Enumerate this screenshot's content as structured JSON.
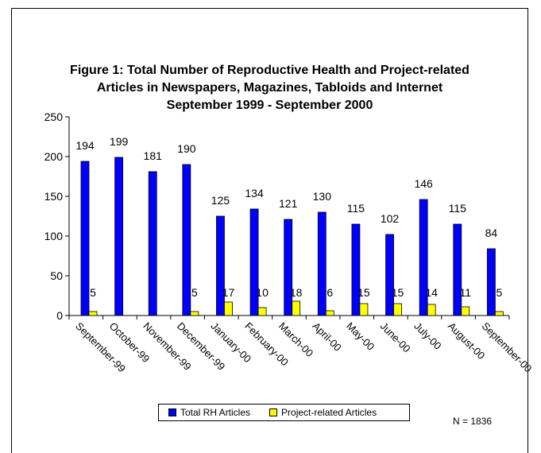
{
  "chart_data": {
    "type": "bar",
    "title_lines": [
      "Figure 1: Total Number of Reproductive Health and Project-related",
      "Articles in Newspapers, Magazines, Tabloids and Internet",
      "September 1999 - September 2000"
    ],
    "categories": [
      "September-99",
      "October-99",
      "November-99",
      "December-99",
      "January-00",
      "February-00",
      "March-00",
      "April-00",
      "May-00",
      "June-00",
      "July-00",
      "August-00",
      "September-00"
    ],
    "series": [
      {
        "name": "Total RH Articles",
        "color": "#0000ff",
        "values": [
          194,
          199,
          181,
          190,
          125,
          134,
          121,
          130,
          115,
          102,
          146,
          115,
          84
        ]
      },
      {
        "name": "Project-related Articles",
        "color": "#ffff00",
        "values": [
          5,
          null,
          null,
          5,
          17,
          10,
          18,
          6,
          15,
          15,
          14,
          11,
          5
        ]
      }
    ],
    "ylim": [
      0,
      250
    ],
    "yticks": [
      "0",
      "50",
      "100",
      "150",
      "200",
      "250"
    ],
    "grid": false,
    "legend_position": "bottom",
    "note": "N = 1836"
  }
}
